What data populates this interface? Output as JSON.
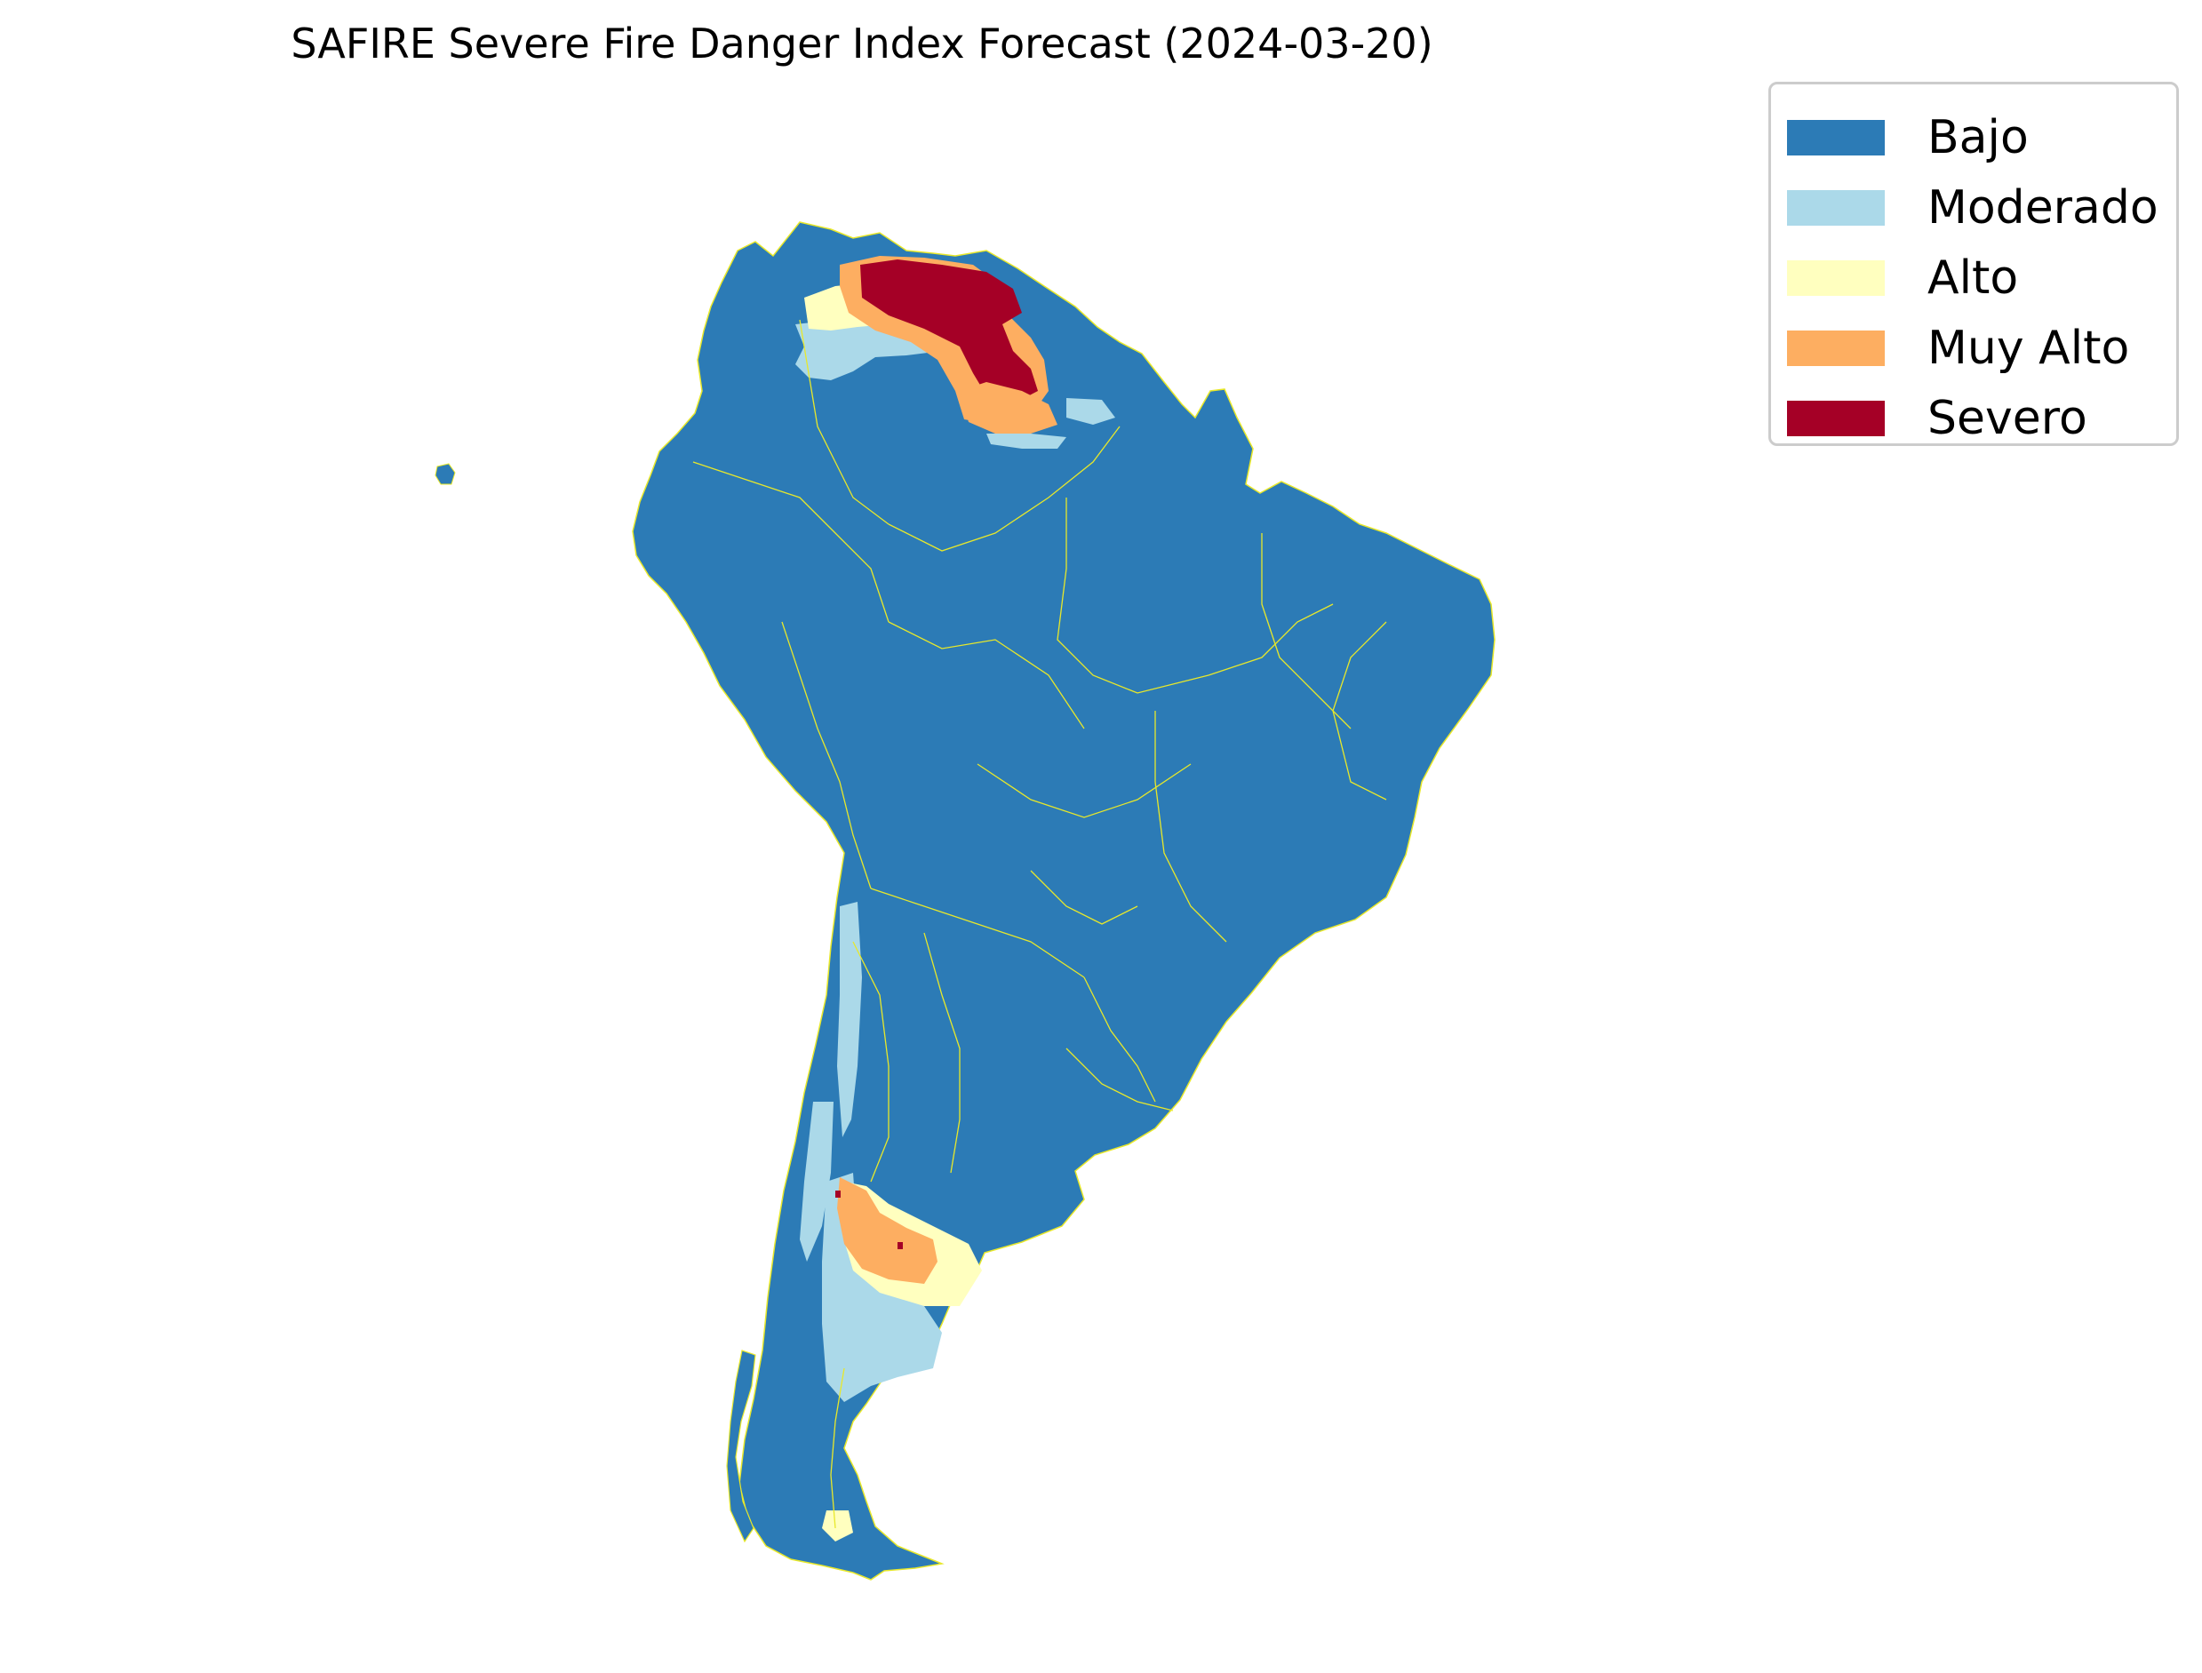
{
  "title": "SAFIRE Severe Fire Danger Index Forecast (2024-03-20)",
  "legend": {
    "entries": [
      {
        "label": "Bajo",
        "color": "#2c7bb6"
      },
      {
        "label": "Moderado",
        "color": "#abd9e9"
      },
      {
        "label": "Alto",
        "color": "#ffffbf"
      },
      {
        "label": "Muy Alto",
        "color": "#fdae61"
      },
      {
        "label": "Severo",
        "color": "#a50026"
      }
    ]
  },
  "map": {
    "region": "South America",
    "boundary_color": "#e8e82a"
  }
}
